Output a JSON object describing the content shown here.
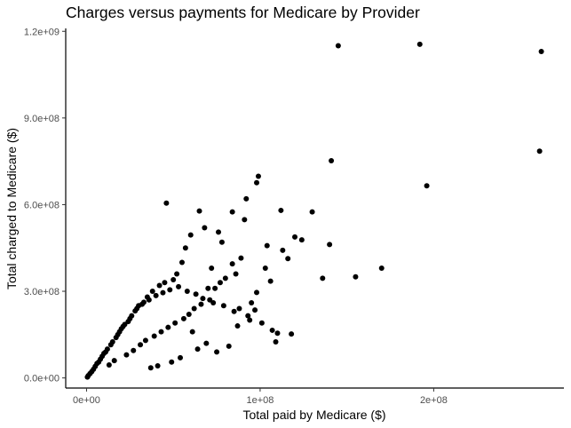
{
  "chart_data": {
    "type": "scatter",
    "title": "Charges versus payments for Medicare by Provider",
    "xlabel": "Total paid by Medicare ($)",
    "ylabel": "Total charged to Medicare ($)",
    "xlim": [
      -12000000,
      275000000
    ],
    "ylim": [
      -35000000,
      1210000000
    ],
    "x_ticks": [
      {
        "value": 0,
        "label": "0e+00"
      },
      {
        "value": 100000000,
        "label": "1e+08"
      },
      {
        "value": 200000000,
        "label": "2e+08"
      }
    ],
    "y_ticks": [
      {
        "value": 0,
        "label": "0.0e+00"
      },
      {
        "value": 300000000,
        "label": "3.0e+08"
      },
      {
        "value": 600000000,
        "label": "6.0e+08"
      },
      {
        "value": 900000000,
        "label": "9.0e+08"
      },
      {
        "value": 1200000000,
        "label": "1.2e+09"
      }
    ],
    "grid": false,
    "legend": "none",
    "point_color": "#000000",
    "series": [
      {
        "x": [
          145000000,
          192000000,
          262000000,
          261000000,
          196000000,
          141000000,
          170000000,
          140000000,
          136000000,
          155000000,
          130000000,
          109000000,
          99000000,
          98000000,
          92000000,
          46000000,
          65000000,
          76000000,
          84000000,
          91000000,
          120000000,
          116000000,
          124000000,
          104000000,
          112000000,
          113000000,
          106000000,
          103000000,
          98000000,
          95000000,
          89000000,
          78000000,
          72000000,
          70000000,
          68000000,
          60000000,
          57000000,
          55000000,
          52000000,
          50000000,
          45000000,
          42000000,
          38000000,
          35000000,
          33000000,
          30000000,
          28000000,
          25000000,
          22000000,
          20000000,
          18000000,
          15000000,
          12000000,
          10000000,
          8000000,
          6000000,
          4000000,
          2000000,
          1000000,
          500000,
          3000000,
          5000000,
          7000000,
          9000000,
          11000000,
          14000000,
          17000000,
          19000000,
          21000000,
          24000000,
          26000000,
          29000000,
          32000000,
          36000000,
          40000000,
          44000000,
          48000000,
          53000000,
          58000000,
          63000000,
          67000000,
          73000000,
          79000000,
          85000000,
          88000000,
          94000000,
          101000000,
          107000000,
          110000000,
          118000000,
          84000000,
          86000000,
          80000000,
          77000000,
          74000000,
          71000000,
          66000000,
          62000000,
          59000000,
          56000000,
          51000000,
          47000000,
          43000000,
          39000000,
          34000000,
          31000000,
          27000000,
          23000000,
          16000000,
          13000000,
          69000000,
          75000000,
          82000000,
          87000000,
          93000000,
          97000000,
          64000000,
          61000000,
          54000000,
          49000000,
          41000000,
          37000000
        ],
        "y": [
          1150000000,
          1155000000,
          1130000000,
          785000000,
          665000000,
          752000000,
          380000000,
          462000000,
          345000000,
          350000000,
          575000000,
          125000000,
          698000000,
          676000000,
          620000000,
          605000000,
          578000000,
          505000000,
          575000000,
          548000000,
          488000000,
          413000000,
          478000000,
          458000000,
          580000000,
          442000000,
          335000000,
          380000000,
          296000000,
          260000000,
          415000000,
          470000000,
          380000000,
          310000000,
          520000000,
          495000000,
          450000000,
          400000000,
          360000000,
          340000000,
          330000000,
          320000000,
          300000000,
          280000000,
          262000000,
          250000000,
          232000000,
          205000000,
          185000000,
          170000000,
          150000000,
          125000000,
          100000000,
          85000000,
          65000000,
          50000000,
          30000000,
          15000000,
          8000000,
          3000000,
          22000000,
          40000000,
          55000000,
          75000000,
          90000000,
          115000000,
          140000000,
          160000000,
          178000000,
          195000000,
          215000000,
          240000000,
          255000000,
          270000000,
          285000000,
          295000000,
          305000000,
          316000000,
          300000000,
          290000000,
          275000000,
          260000000,
          250000000,
          230000000,
          240000000,
          200000000,
          190000000,
          165000000,
          155000000,
          152000000,
          395000000,
          360000000,
          345000000,
          330000000,
          310000000,
          270000000,
          255000000,
          240000000,
          220000000,
          205000000,
          190000000,
          175000000,
          160000000,
          145000000,
          130000000,
          115000000,
          95000000,
          80000000,
          60000000,
          45000000,
          120000000,
          90000000,
          110000000,
          180000000,
          215000000,
          235000000,
          100000000,
          160000000,
          70000000,
          55000000,
          42000000,
          35000000
        ]
      }
    ]
  }
}
